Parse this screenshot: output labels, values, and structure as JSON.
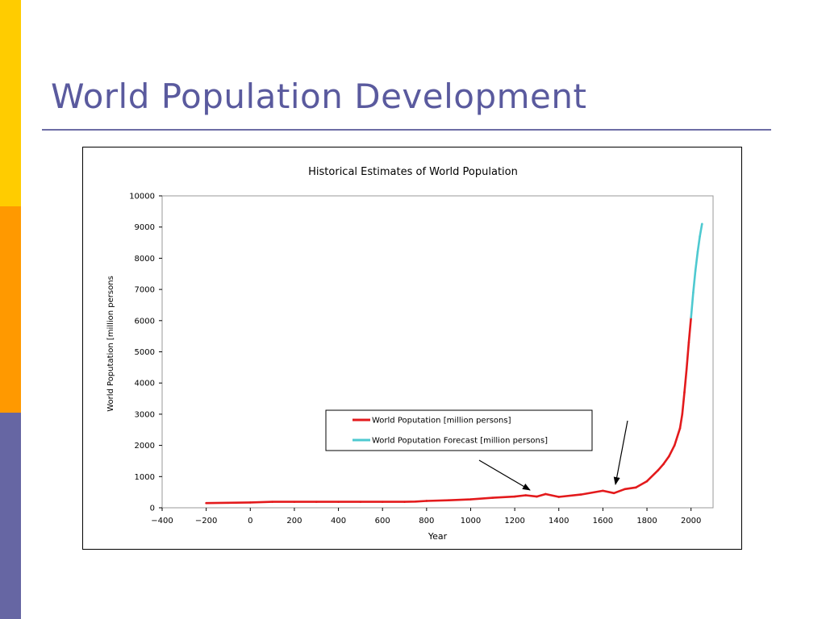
{
  "slide": {
    "title": "World Population Development",
    "accent_colors": [
      "#ffcc00",
      "#ff9900",
      "#6666a3"
    ],
    "title_color": "#5a5a9e"
  },
  "chart_data": {
    "type": "line",
    "title": "Historical Estimates of World Population",
    "xlabel": "Year",
    "ylabel": "World Poputation [million persons",
    "xlim": [
      -400,
      2100
    ],
    "ylim": [
      0,
      10000
    ],
    "x_ticks": [
      -400,
      -200,
      0,
      200,
      400,
      600,
      800,
      1000,
      1200,
      1400,
      1600,
      1800,
      2000
    ],
    "y_ticks": [
      0,
      1000,
      2000,
      3000,
      4000,
      5000,
      6000,
      7000,
      8000,
      9000,
      10000
    ],
    "grid": false,
    "legend_position": "center",
    "series": [
      {
        "name": "World Poputation [million persons]",
        "color": "#e31a1c",
        "x": [
          -200,
          -100,
          0,
          100,
          200,
          300,
          400,
          500,
          600,
          700,
          750,
          800,
          900,
          1000,
          1100,
          1200,
          1250,
          1300,
          1340,
          1400,
          1500,
          1600,
          1650,
          1700,
          1750,
          1800,
          1850,
          1875,
          1900,
          1925,
          1950,
          1960,
          1970,
          1980,
          1990,
          2000
        ],
        "y": [
          150,
          160,
          170,
          190,
          190,
          190,
          190,
          190,
          190,
          190,
          200,
          220,
          240,
          270,
          320,
          360,
          400,
          360,
          440,
          350,
          425,
          545,
          470,
          600,
          650,
          850,
          1200,
          1400,
          1650,
          2000,
          2550,
          3000,
          3700,
          4450,
          5300,
          6100
        ]
      },
      {
        "name": "World Poputation Forecast [million persons]",
        "color": "#4ec9d0",
        "x": [
          2000,
          2010,
          2020,
          2030,
          2040,
          2050
        ],
        "y": [
          6100,
          6900,
          7600,
          8200,
          8700,
          9100
        ]
      }
    ],
    "annotations": [
      {
        "type": "arrow",
        "points_to": {
          "x": 1270,
          "y": 400
        }
      },
      {
        "type": "arrow",
        "points_to": {
          "x": 1650,
          "y": 470
        }
      }
    ]
  }
}
